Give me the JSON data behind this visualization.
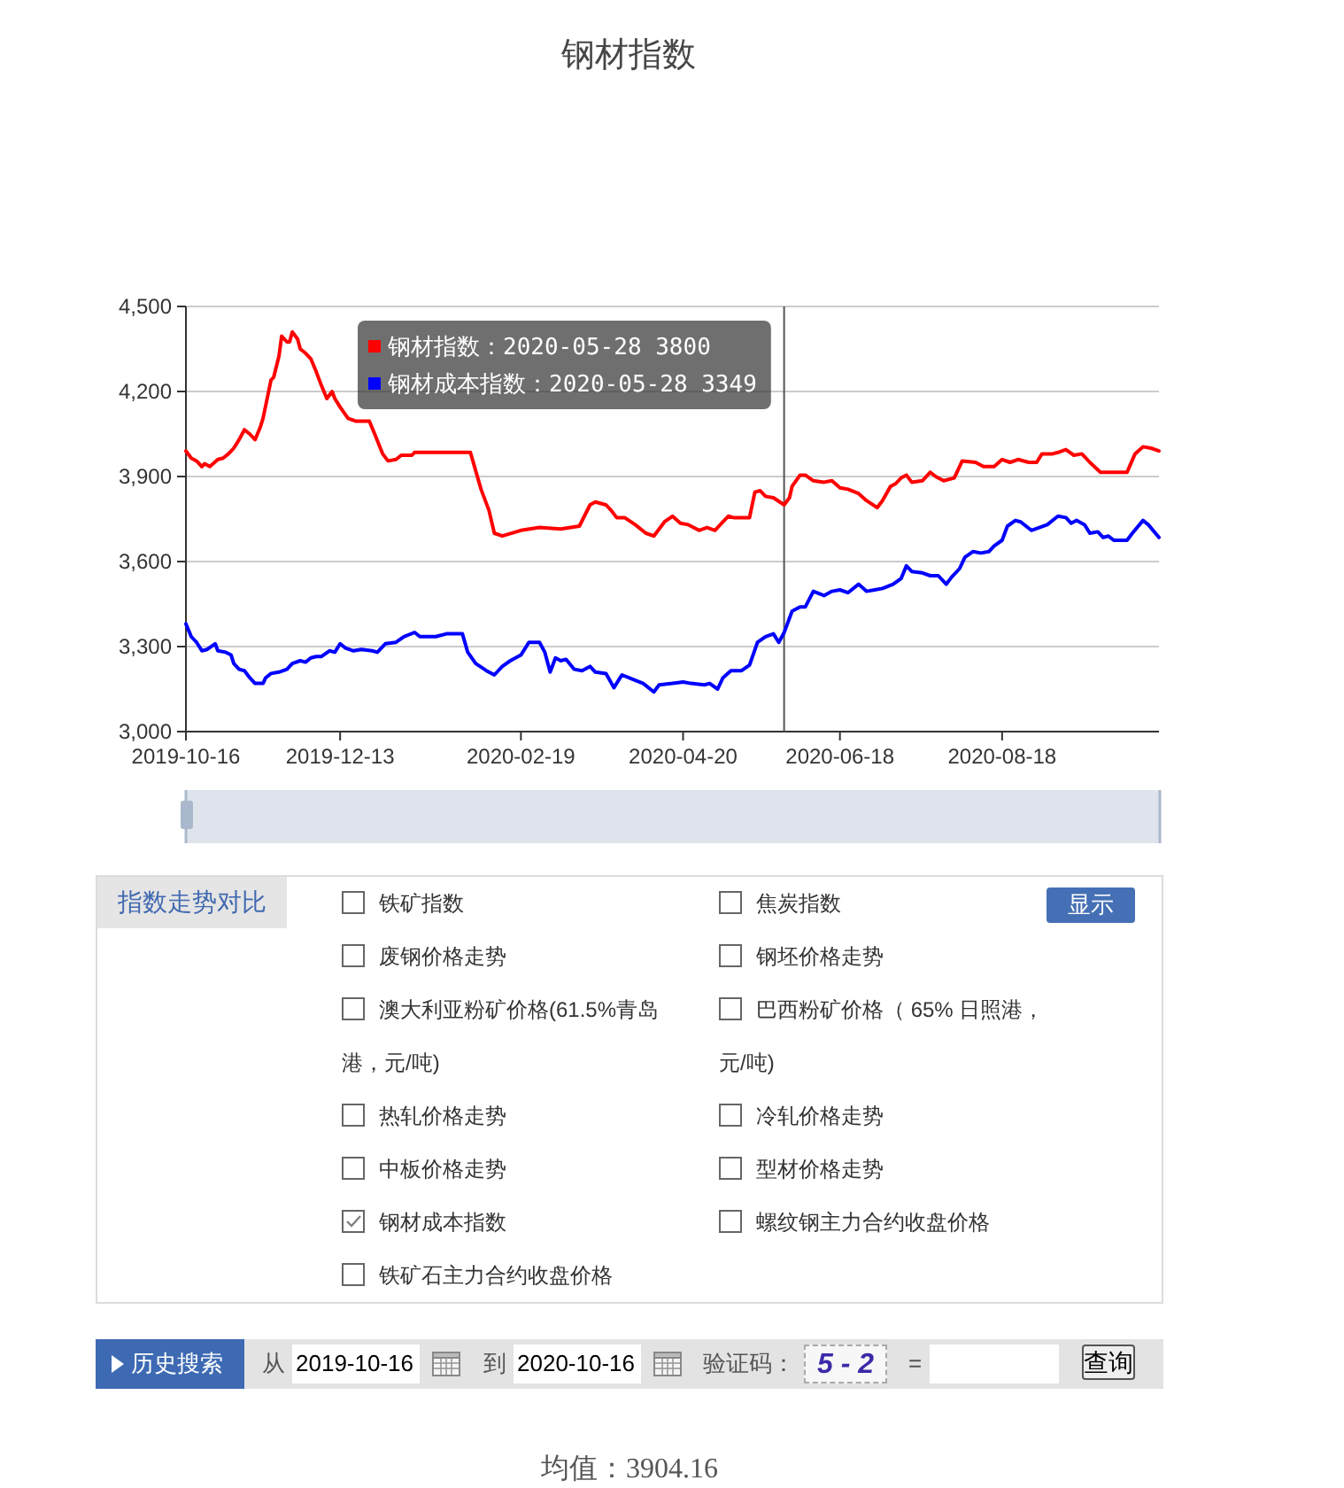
{
  "chart_data": [
    {
      "type": "line",
      "title": "钢材指数",
      "xlim": [
        "2019-10-16",
        "2020-10-16"
      ],
      "xticks": [
        "2019-10-16",
        "2019-12-13",
        "2020-02-19",
        "2020-04-20",
        "2020-06-18",
        "2020-08-18"
      ],
      "ylim": [
        3000,
        4500
      ],
      "yticks": [
        {
          "value": 3000,
          "label": "3,000"
        },
        {
          "value": 3300,
          "label": "3,300"
        },
        {
          "value": 3600,
          "label": "3,600"
        },
        {
          "value": 3900,
          "label": "3,900"
        },
        {
          "value": 4200,
          "label": "4,200"
        },
        {
          "value": 4500,
          "label": "4,500"
        }
      ],
      "grid": "y",
      "ref_lines": [
        {
          "axis": "x",
          "value": "2020-05-28",
          "color": "#555555"
        }
      ],
      "annotations": [
        "钢材指数：2020-05-28 3800",
        "钢材成本指数：2020-05-28 3349"
      ],
      "series": [
        {
          "color": "#ff0000",
          "x": [
            "2019-10-16",
            "2019-10-18",
            "2019-10-20",
            "2019-10-22",
            "2019-10-23",
            "2019-10-25",
            "2019-10-28",
            "2019-10-30",
            "2019-11-01",
            "2019-11-03",
            "2019-11-05",
            "2019-11-07",
            "2019-11-09",
            "2019-11-11",
            "2019-11-13",
            "2019-11-14",
            "2019-11-17",
            "2019-11-18",
            "2019-11-20",
            "2019-11-21",
            "2019-11-23",
            "2019-11-24",
            "2019-11-25",
            "2019-11-27",
            "2019-11-28",
            "2019-11-30",
            "2019-12-02",
            "2019-12-04",
            "2019-12-06",
            "2019-12-08",
            "2019-12-10",
            "2019-12-11",
            "2019-12-13",
            "2019-12-16",
            "2019-12-19",
            "2019-12-24",
            "2019-12-26",
            "2019-12-29",
            "2019-12-31",
            "2020-01-03",
            "2020-01-05",
            "2020-01-09",
            "2020-01-10",
            "2020-01-31",
            "2020-02-04",
            "2020-02-07",
            "2020-02-09",
            "2020-02-12",
            "2020-02-19",
            "2020-02-26",
            "2020-03-05",
            "2020-03-12",
            "2020-03-16",
            "2020-03-18",
            "2020-03-22",
            "2020-03-24",
            "2020-03-26",
            "2020-03-29",
            "2020-04-02",
            "2020-04-06",
            "2020-04-09",
            "2020-04-13",
            "2020-04-16",
            "2020-04-19",
            "2020-04-22",
            "2020-04-26",
            "2020-04-29",
            "2020-05-02",
            "2020-05-05",
            "2020-05-07",
            "2020-05-09",
            "2020-05-15",
            "2020-05-17",
            "2020-05-19",
            "2020-05-21",
            "2020-05-24",
            "2020-05-28",
            "2020-05-30",
            "2020-05-31",
            "2020-06-03",
            "2020-06-05",
            "2020-06-08",
            "2020-06-12",
            "2020-06-15",
            "2020-06-18",
            "2020-06-21",
            "2020-06-25",
            "2020-06-28",
            "2020-07-02",
            "2020-07-04",
            "2020-07-07",
            "2020-07-09",
            "2020-07-11",
            "2020-07-13",
            "2020-07-15",
            "2020-07-19",
            "2020-07-22",
            "2020-07-24",
            "2020-07-27",
            "2020-07-31",
            "2020-08-03",
            "2020-08-08",
            "2020-08-11",
            "2020-08-15",
            "2020-08-18",
            "2020-08-21",
            "2020-08-24",
            "2020-08-28",
            "2020-08-31",
            "2020-09-02",
            "2020-09-06",
            "2020-09-08",
            "2020-09-11",
            "2020-09-14",
            "2020-09-17",
            "2020-09-20",
            "2020-09-24",
            "2020-09-28",
            "2020-10-04",
            "2020-10-07",
            "2020-10-10",
            "2020-10-13",
            "2020-10-16"
          ],
          "values": [
            3990,
            3965,
            3955,
            3935,
            3945,
            3935,
            3960,
            3965,
            3980,
            4000,
            4030,
            4065,
            4050,
            4030,
            4075,
            4105,
            4240,
            4250,
            4325,
            4395,
            4375,
            4375,
            4410,
            4385,
            4350,
            4335,
            4315,
            4270,
            4220,
            4175,
            4200,
            4175,
            4145,
            4105,
            4095,
            4095,
            4050,
            3980,
            3955,
            3960,
            3975,
            3975,
            3985,
            3985,
            3855,
            3780,
            3700,
            3690,
            3710,
            3720,
            3715,
            3725,
            3800,
            3810,
            3800,
            3780,
            3755,
            3755,
            3730,
            3700,
            3690,
            3740,
            3760,
            3735,
            3730,
            3710,
            3720,
            3710,
            3740,
            3760,
            3755,
            3755,
            3845,
            3850,
            3830,
            3825,
            3800,
            3825,
            3865,
            3905,
            3905,
            3885,
            3880,
            3885,
            3860,
            3855,
            3840,
            3815,
            3790,
            3815,
            3865,
            3875,
            3895,
            3905,
            3880,
            3885,
            3915,
            3900,
            3885,
            3895,
            3955,
            3950,
            3935,
            3935,
            3960,
            3950,
            3960,
            3950,
            3950,
            3980,
            3980,
            3985,
            3995,
            3975,
            3980,
            3950,
            3915,
            3915,
            3915,
            3980,
            4005,
            4000,
            3990
          ]
        },
        {
          "color": "#0000ff",
          "x": [
            "2019-10-16",
            "2019-10-18",
            "2019-10-19",
            "2019-10-20",
            "2019-10-22",
            "2019-10-24",
            "2019-10-27",
            "2019-10-28",
            "2019-10-31",
            "2019-11-02",
            "2019-11-03",
            "2019-11-05",
            "2019-11-07",
            "2019-11-09",
            "2019-11-11",
            "2019-11-14",
            "2019-11-15",
            "2019-11-17",
            "2019-11-20",
            "2019-11-23",
            "2019-11-25",
            "2019-11-28",
            "2019-11-30",
            "2019-12-02",
            "2019-12-04",
            "2019-12-06",
            "2019-12-09",
            "2019-12-11",
            "2019-12-13",
            "2019-12-15",
            "2019-12-18",
            "2019-12-21",
            "2019-12-25",
            "2019-12-27",
            "2019-12-30",
            "2020-01-03",
            "2020-01-06",
            "2020-01-10",
            "2020-01-12",
            "2020-01-16",
            "2020-01-18",
            "2020-01-22",
            "2020-01-28",
            "2020-01-30",
            "2020-02-02",
            "2020-02-06",
            "2020-02-09",
            "2020-02-12",
            "2020-02-15",
            "2020-02-19",
            "2020-02-22",
            "2020-02-26",
            "2020-02-28",
            "2020-03-01",
            "2020-03-03",
            "2020-03-05",
            "2020-03-07",
            "2020-03-10",
            "2020-03-13",
            "2020-03-16",
            "2020-03-18",
            "2020-03-22",
            "2020-03-25",
            "2020-03-28",
            "2020-04-01",
            "2020-04-05",
            "2020-04-09",
            "2020-04-11",
            "2020-04-16",
            "2020-04-20",
            "2020-04-23",
            "2020-04-28",
            "2020-04-30",
            "2020-05-03",
            "2020-05-05",
            "2020-05-08",
            "2020-05-12",
            "2020-05-15",
            "2020-05-18",
            "2020-05-21",
            "2020-05-24",
            "2020-05-26",
            "2020-05-28",
            "2020-05-31",
            "2020-06-03",
            "2020-06-05",
            "2020-06-08",
            "2020-06-12",
            "2020-06-15",
            "2020-06-18",
            "2020-06-21",
            "2020-06-25",
            "2020-06-28",
            "2020-07-01",
            "2020-07-04",
            "2020-07-08",
            "2020-07-11",
            "2020-07-13",
            "2020-07-15",
            "2020-07-19",
            "2020-07-22",
            "2020-07-25",
            "2020-07-28",
            "2020-07-30",
            "2020-08-02",
            "2020-08-04",
            "2020-08-07",
            "2020-08-10",
            "2020-08-13",
            "2020-08-15",
            "2020-08-18",
            "2020-08-20",
            "2020-08-23",
            "2020-08-25",
            "2020-08-29",
            "2020-09-01",
            "2020-09-04",
            "2020-09-08",
            "2020-09-11",
            "2020-09-13",
            "2020-09-15",
            "2020-09-18",
            "2020-09-20",
            "2020-09-23",
            "2020-09-25",
            "2020-09-27",
            "2020-09-29",
            "2020-10-04",
            "2020-10-06",
            "2020-10-10",
            "2020-10-12",
            "2020-10-16"
          ],
          "values": [
            3380,
            3335,
            3325,
            3315,
            3285,
            3290,
            3310,
            3285,
            3280,
            3270,
            3240,
            3220,
            3215,
            3190,
            3170,
            3170,
            3190,
            3205,
            3210,
            3220,
            3240,
            3250,
            3245,
            3260,
            3265,
            3265,
            3285,
            3280,
            3310,
            3295,
            3285,
            3290,
            3285,
            3280,
            3310,
            3315,
            3335,
            3350,
            3335,
            3335,
            3335,
            3345,
            3345,
            3280,
            3240,
            3215,
            3200,
            3230,
            3250,
            3270,
            3315,
            3315,
            3280,
            3210,
            3260,
            3250,
            3255,
            3220,
            3215,
            3230,
            3210,
            3205,
            3155,
            3200,
            3185,
            3170,
            3140,
            3165,
            3170,
            3175,
            3170,
            3165,
            3170,
            3150,
            3190,
            3215,
            3215,
            3235,
            3315,
            3335,
            3345,
            3315,
            3349,
            3425,
            3440,
            3440,
            3495,
            3480,
            3495,
            3500,
            3490,
            3520,
            3495,
            3500,
            3505,
            3520,
            3540,
            3585,
            3565,
            3560,
            3550,
            3550,
            3520,
            3545,
            3575,
            3615,
            3635,
            3630,
            3635,
            3655,
            3675,
            3725,
            3745,
            3740,
            3710,
            3720,
            3730,
            3760,
            3755,
            3735,
            3745,
            3730,
            3700,
            3705,
            3685,
            3690,
            3675,
            3675,
            3700,
            3745,
            3730,
            3685
          ]
        }
      ]
    },
    {
      "type": "other",
      "title": "指数走势对比",
      "categories": [
        "铁矿指数",
        "焦炭指数",
        "废钢价格走势",
        "钢坯价格走势",
        "澳大利亚粉矿价格(61.5%青岛港，元/吨)",
        "巴西粉矿价格（ 65% 日照港，元/吨)",
        "热轧价格走势",
        "冷轧价格走势",
        "中板价格走势",
        "型材价格走势",
        "钢材成本指数",
        "螺纹钢主力合约收盘价格",
        "铁矿石主力合约收盘价格"
      ],
      "colors": [
        null,
        null,
        null,
        null,
        null,
        null,
        null,
        null,
        null,
        null,
        "#808080",
        null,
        null
      ],
      "annotations": [
        "显示"
      ]
    },
    {
      "type": "other",
      "annotations": [
        "历史搜索",
        "从",
        "2019-10-16",
        "到",
        "2020-10-16",
        "验证码：",
        "5 - 2",
        "=",
        "查询",
        "均值：3904.16"
      ]
    }
  ]
}
